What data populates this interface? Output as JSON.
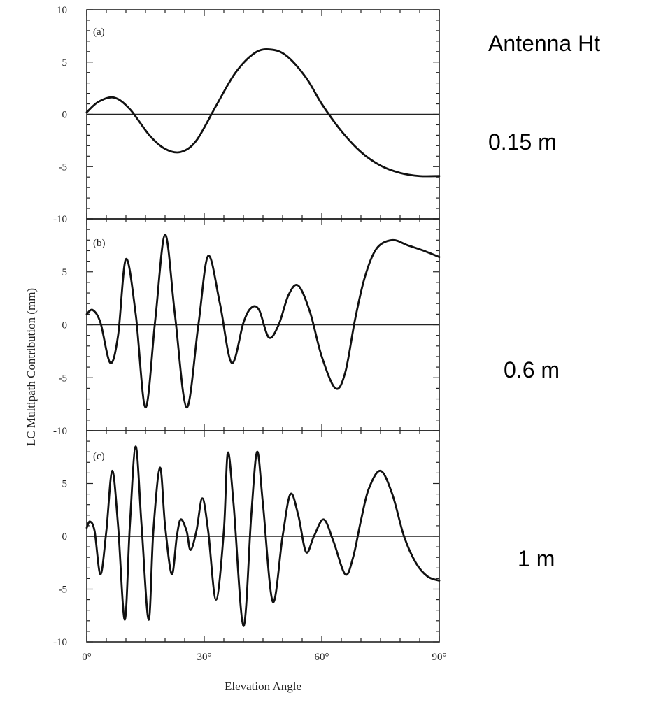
{
  "side_labels": {
    "header": "Antenna Ht",
    "heights": [
      "0.15 m",
      "0.6 m",
      "1 m"
    ]
  },
  "chart_data": {
    "type": "line",
    "xlabel": "Elevation Angle",
    "ylabel": "LC Multipath Contribution (mm)",
    "xlim": [
      0,
      90
    ],
    "x_ticks": [
      0,
      30,
      60,
      90
    ],
    "x_tick_labels": [
      "0°",
      "30°",
      "60°",
      "90°"
    ],
    "grid": false,
    "panels": [
      {
        "tag": "(a)",
        "antenna_height": "0.15 m",
        "ylim": [
          -10,
          10
        ],
        "y_ticks": [
          10,
          5,
          0,
          -5,
          -10
        ],
        "y_tick_labels": [
          "10",
          "5",
          "0",
          "-5",
          "-10"
        ],
        "series": [
          {
            "x": [
              0,
              3,
              7,
              11,
              16,
              20,
              24,
              28,
              33,
              38,
              43,
              47,
              51,
              56,
              60,
              65,
              70,
              75,
              80,
              85,
              90
            ],
            "y": [
              0.2,
              1.2,
              1.6,
              0.5,
              -2.0,
              -3.3,
              -3.6,
              -2.5,
              0.8,
              4.0,
              5.9,
              6.2,
              5.6,
              3.5,
              1.0,
              -1.6,
              -3.6,
              -4.9,
              -5.6,
              -5.9,
              -5.9
            ]
          }
        ]
      },
      {
        "tag": "(b)",
        "antenna_height": "0.6 m",
        "ylim": [
          -10,
          10
        ],
        "y_ticks": [
          5,
          0,
          -5,
          -10
        ],
        "y_tick_labels": [
          "5",
          "0",
          "-5",
          "-10"
        ],
        "series": [
          {
            "x": [
              0,
              1.5,
              3.5,
              6,
              8,
              10,
              12.5,
              15,
              17.5,
              20,
              22.5,
              25.5,
              28.5,
              31,
              34,
              37,
              40,
              42,
              44,
              46.5,
              49,
              51.5,
              54,
              57,
              60,
              63.5,
              66,
              68.5,
              71,
              74,
              78,
              82,
              86,
              90
            ],
            "y": [
              1.0,
              1.4,
              0.2,
              -3.6,
              -1.0,
              6.2,
              1.0,
              -7.8,
              0.5,
              8.5,
              1.0,
              -7.8,
              0.0,
              6.5,
              2.0,
              -3.6,
              0.2,
              1.6,
              1.4,
              -1.2,
              0.0,
              2.8,
              3.7,
              1.2,
              -3.0,
              -6.0,
              -4.5,
              0.5,
              4.5,
              7.2,
              8.0,
              7.5,
              7.0,
              6.4
            ]
          }
        ]
      },
      {
        "tag": "(c)",
        "antenna_height": "1 m",
        "ylim": [
          -10,
          10
        ],
        "y_ticks": [
          5,
          0,
          -5,
          -10
        ],
        "y_tick_labels": [
          "5",
          "0",
          "-5",
          "-10"
        ],
        "series": [
          {
            "x": [
              0,
              0.8,
              2,
              3.5,
              5,
              6.5,
              8,
              9.7,
              11,
              12.5,
              14,
              15.8,
              17,
              18.7,
              20,
              21.7,
              23,
              24,
              25.5,
              26.5,
              28,
              29.5,
              31,
              33,
              35,
              36,
              37.5,
              40,
              42,
              43.5,
              45,
              47.5,
              50,
              52,
              54,
              56,
              58,
              60.5,
              63,
              66,
              68,
              70,
              72,
              75,
              78,
              81,
              84,
              87,
              90
            ],
            "y": [
              0.8,
              1.4,
              0.5,
              -3.6,
              0.5,
              6.2,
              1.0,
              -7.9,
              1.0,
              8.5,
              1.0,
              -7.9,
              0.5,
              6.5,
              1.0,
              -3.6,
              0.0,
              1.6,
              0.5,
              -1.3,
              0.5,
              3.6,
              0.5,
              -6.0,
              0.5,
              7.9,
              3.0,
              -8.5,
              2.0,
              8.0,
              3.0,
              -6.2,
              0.0,
              4.0,
              2.0,
              -1.5,
              0.0,
              1.6,
              -0.5,
              -3.6,
              -2.0,
              1.5,
              4.5,
              6.2,
              4.0,
              0.0,
              -2.5,
              -3.8,
              -4.2
            ]
          }
        ]
      }
    ]
  }
}
